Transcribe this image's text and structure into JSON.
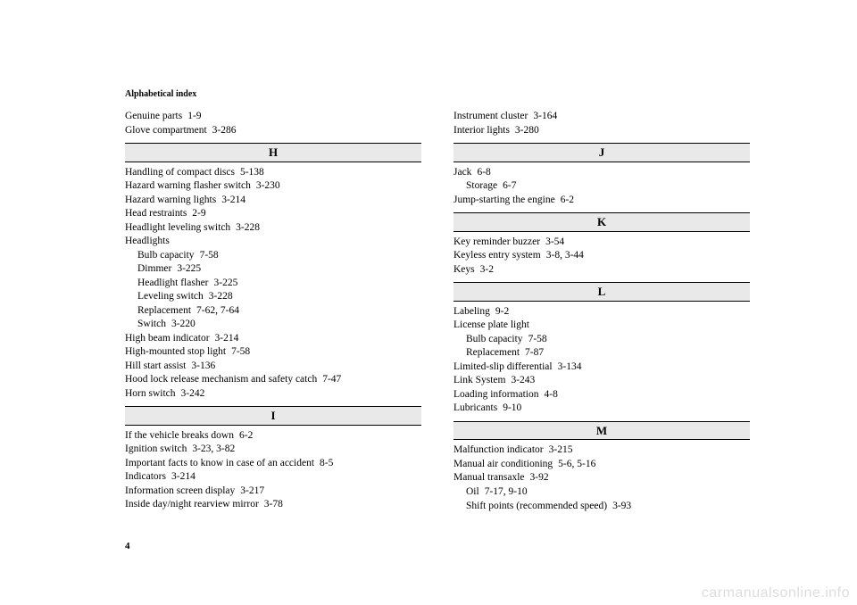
{
  "runningHead": "Alphabetical index",
  "pageNumber": "4",
  "watermark": "carmanualsonline.info",
  "left": {
    "pre": [
      {
        "term": "Genuine parts",
        "page": "1-9"
      },
      {
        "term": "Glove compartment",
        "page": "3-286"
      }
    ],
    "H": {
      "letter": "H",
      "items": [
        {
          "term": "Handling of compact discs",
          "page": "5-138"
        },
        {
          "term": "Hazard warning flasher switch",
          "page": "3-230"
        },
        {
          "term": "Hazard warning lights",
          "page": "3-214"
        },
        {
          "term": "Head restraints",
          "page": "2-9"
        },
        {
          "term": "Headlight leveling switch",
          "page": "3-228"
        },
        {
          "term": "Headlights",
          "page": ""
        },
        {
          "term": "Bulb capacity",
          "page": "7-58",
          "sub": true
        },
        {
          "term": "Dimmer",
          "page": "3-225",
          "sub": true
        },
        {
          "term": "Headlight flasher",
          "page": "3-225",
          "sub": true
        },
        {
          "term": "Leveling switch",
          "page": "3-228",
          "sub": true
        },
        {
          "term": "Replacement",
          "page": "7-62, 7-64",
          "sub": true
        },
        {
          "term": "Switch",
          "page": "3-220",
          "sub": true
        },
        {
          "term": "High beam indicator",
          "page": "3-214"
        },
        {
          "term": "High-mounted stop light",
          "page": "7-58"
        },
        {
          "term": "Hill start assist",
          "page": "3-136"
        },
        {
          "term": "Hood lock release mechanism and safety catch",
          "page": "7-47"
        },
        {
          "term": "Horn switch",
          "page": "3-242"
        }
      ]
    },
    "I": {
      "letter": "I",
      "items": [
        {
          "term": "If the vehicle breaks down",
          "page": "6-2"
        },
        {
          "term": "Ignition switch",
          "page": "3-23, 3-82"
        },
        {
          "term": "Important facts to know in case of an accident",
          "page": "8-5"
        },
        {
          "term": "Indicators",
          "page": "3-214"
        },
        {
          "term": "Information screen display",
          "page": "3-217"
        },
        {
          "term": "Inside day/night rearview mirror",
          "page": "3-78"
        }
      ]
    }
  },
  "right": {
    "pre": [
      {
        "term": "Instrument cluster",
        "page": "3-164"
      },
      {
        "term": "Interior lights",
        "page": "3-280"
      }
    ],
    "J": {
      "letter": "J",
      "items": [
        {
          "term": "Jack",
          "page": "6-8"
        },
        {
          "term": "Storage",
          "page": "6-7",
          "sub": true
        },
        {
          "term": "Jump-starting the engine",
          "page": "6-2"
        }
      ]
    },
    "K": {
      "letter": "K",
      "items": [
        {
          "term": "Key reminder buzzer",
          "page": "3-54"
        },
        {
          "term": "Keyless entry system",
          "page": "3-8, 3-44"
        },
        {
          "term": "Keys",
          "page": "3-2"
        }
      ]
    },
    "L": {
      "letter": "L",
      "items": [
        {
          "term": "Labeling",
          "page": "9-2"
        },
        {
          "term": "License plate light",
          "page": ""
        },
        {
          "term": "Bulb capacity",
          "page": "7-58",
          "sub": true
        },
        {
          "term": "Replacement",
          "page": "7-87",
          "sub": true
        },
        {
          "term": "Limited-slip differential",
          "page": "3-134"
        },
        {
          "term": "Link System",
          "page": "3-243"
        },
        {
          "term": "Loading information",
          "page": "4-8"
        },
        {
          "term": "Lubricants",
          "page": "9-10"
        }
      ]
    },
    "M": {
      "letter": "M",
      "items": [
        {
          "term": "Malfunction indicator",
          "page": "3-215"
        },
        {
          "term": "Manual air conditioning",
          "page": "5-6, 5-16"
        },
        {
          "term": "Manual transaxle",
          "page": "3-92"
        },
        {
          "term": "Oil",
          "page": "7-17, 9-10",
          "sub": true
        },
        {
          "term": "Shift points (recommended speed)",
          "page": "3-93",
          "sub": true
        }
      ]
    }
  }
}
